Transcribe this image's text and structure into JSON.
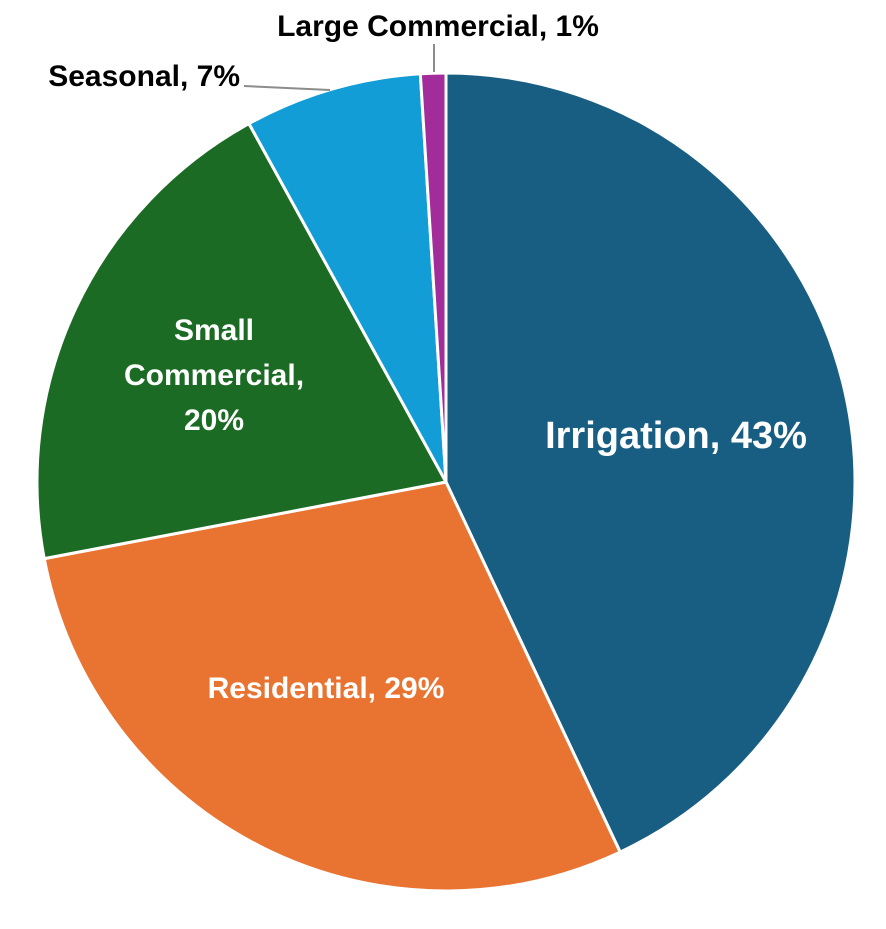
{
  "chart_data": {
    "type": "pie",
    "slices": [
      {
        "category": "Irrigation",
        "pct": "43%",
        "value": 43,
        "color": "#175E82",
        "label_color": "#FFFFFF"
      },
      {
        "category": "Residential",
        "pct": "29%",
        "value": 29,
        "color": "#E97432",
        "label_color": "#FFFFFF"
      },
      {
        "category": "Small Commercial",
        "pct": "20%",
        "value": 20,
        "color": "#1C6B25",
        "label_color": "#FFFFFF"
      },
      {
        "category": "Seasonal",
        "pct": "7%",
        "value": 7,
        "color": "#129DD6",
        "label_color": "#000000"
      },
      {
        "category": "Large Commercial",
        "pct": "1%",
        "value": 1,
        "color": "#A22C9A",
        "label_color": "#000000"
      }
    ],
    "start_angle": "12 o'clock",
    "direction": "clockwise",
    "slice_border_color": "#FFFFFF",
    "legend": "none"
  }
}
